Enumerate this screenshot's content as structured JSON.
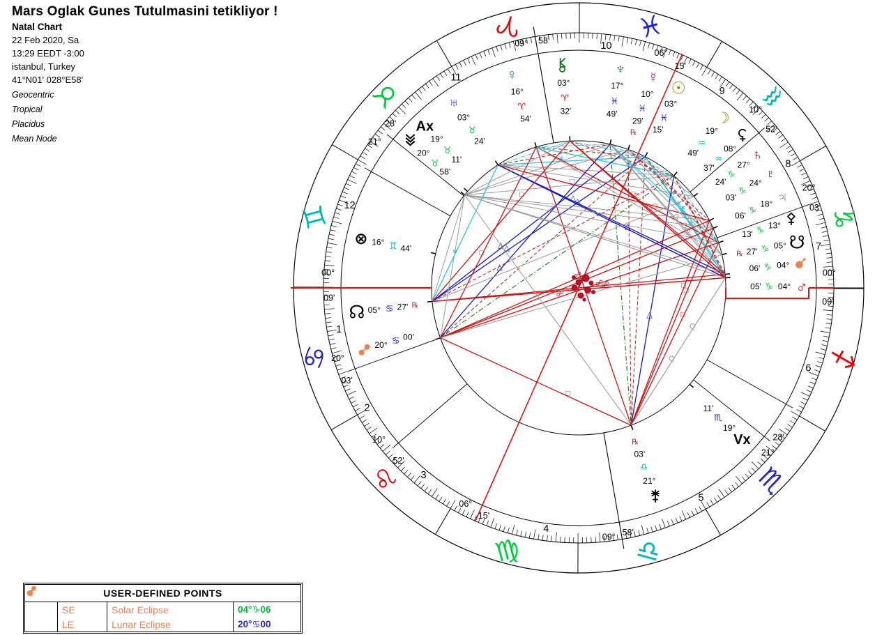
{
  "header": {
    "title": "Mars Oglak Gunes Tutulmasini tetikliyor !",
    "subtitle": "Natal Chart",
    "date": "22 Feb 2020, Sa",
    "time": "13:29 EEDT -3:00",
    "location": "istanbul, Turkey",
    "coordinates": "41°N01' 028°E58'",
    "settings": [
      "Geocentric",
      "Tropical",
      "Placidus",
      "Mean Node"
    ]
  },
  "chart_data": {
    "type": "natal_wheel",
    "ascendant": "00°Cancer09'",
    "midheaven": "09°Aries58'",
    "signs": [
      {
        "name": "aries",
        "glyph": "♈",
        "color": "#e60000",
        "start_phi": 269.85
      },
      {
        "name": "taurus",
        "glyph": "♉",
        "color": "#00cd3c",
        "start_phi": 299.85
      },
      {
        "name": "gemini",
        "glyph": "♊",
        "color": "#00b8b8",
        "start_phi": 329.85
      },
      {
        "name": "cancer",
        "glyph": "♋",
        "color": "#2323cc",
        "start_phi": 359.85
      },
      {
        "name": "leo",
        "glyph": "♌",
        "color": "#e60000",
        "start_phi": 29.85
      },
      {
        "name": "virgo",
        "glyph": "♍",
        "color": "#00cd3c",
        "start_phi": 59.85
      },
      {
        "name": "libra",
        "glyph": "♎",
        "color": "#00b8b8",
        "start_phi": 89.85
      },
      {
        "name": "scorpio",
        "glyph": "♏",
        "color": "#2323cc",
        "start_phi": 119.85
      },
      {
        "name": "sagittarius",
        "glyph": "♐",
        "color": "#e60000",
        "start_phi": 149.85
      },
      {
        "name": "capricorn",
        "glyph": "♑",
        "color": "#00cd3c",
        "start_phi": 179.85
      },
      {
        "name": "aquarius",
        "glyph": "♒",
        "color": "#00b8b8",
        "start_phi": 209.85
      },
      {
        "name": "pisces",
        "glyph": "♓",
        "color": "#2323cc",
        "start_phi": 239.85
      }
    ],
    "houses": [
      {
        "num": "1",
        "cusp_phi": 0.0,
        "deg": "00°",
        "min": "09'",
        "deg_phi": 356.6,
        "min_phi": 2.3,
        "num_phi": 9.9,
        "angular": true,
        "red": true
      },
      {
        "num": "2",
        "cusp_phi": 19.9,
        "deg": "20°",
        "min": "03'",
        "deg_phi": 16.3,
        "min_phi": 21.8,
        "num_phi": 29.6,
        "angular": false,
        "red": false
      },
      {
        "num": "3",
        "cusp_phi": 40.72,
        "deg": "10°",
        "min": "52'",
        "deg_phi": 37.3,
        "min_phi": 43.8,
        "num_phi": 50.4,
        "angular": false,
        "red": false
      },
      {
        "num": "4",
        "cusp_phi": 99.82,
        "deg": "09°",
        "min": "58'",
        "deg_phi": 96.9,
        "min_phi": 101.4,
        "num_phi": 82.3,
        "angular": true,
        "red": false
      },
      {
        "num": "5",
        "cusp_phi": 141.32,
        "deg": "21°",
        "min": "28'",
        "deg_phi": 138.9,
        "min_phi": 143.2,
        "num_phi": 120.2,
        "angular": false,
        "red": false
      },
      {
        "num": "6",
        "cusp_phi": 150.72,
        "deg": "",
        "min": "",
        "deg_phi": 0,
        "min_phi": 0,
        "num_phi": 160.7,
        "angular": false,
        "red": false
      },
      {
        "num": "7",
        "cusp_phi": 180.0,
        "deg": "00°",
        "min": "09'",
        "deg_phi": 183.4,
        "min_phi": 176.8,
        "num_phi": 189.7,
        "angular": true,
        "red": true
      },
      {
        "num": "8",
        "cusp_phi": 199.9,
        "deg": "20°",
        "min": "03'",
        "deg_phi": 203.5,
        "min_phi": 198.7,
        "num_phi": 210.6,
        "angular": false,
        "red": false
      },
      {
        "num": "9",
        "cusp_phi": 220.72,
        "deg": "10°",
        "min": "52'",
        "deg_phi": 225.2,
        "min_phi": 219.5,
        "num_phi": 233.9,
        "angular": false,
        "red": false
      },
      {
        "num": "10",
        "cusp_phi": 279.82,
        "deg": "09°",
        "min": "58'",
        "deg_phi": 283.2,
        "min_phi": 278.0,
        "num_phi": 263.5,
        "angular": true,
        "red": false
      },
      {
        "num": "11",
        "cusp_phi": 321.32,
        "deg": "21°",
        "min": "28'",
        "deg_phi": 324.4,
        "min_phi": 318.9,
        "num_phi": 300.3,
        "angular": false,
        "red": false
      },
      {
        "num": "12",
        "cusp_phi": 330.72,
        "deg": "",
        "min": "",
        "deg_phi": 0,
        "min_phi": 0,
        "num_phi": 340.2,
        "angular": false,
        "red": false
      }
    ],
    "bodies": [
      {
        "name": "sun",
        "char": "☉",
        "size": 24,
        "color": "#8f8f00",
        "deg": "03°",
        "sign": "♓",
        "sign_color": "#2323cc",
        "min": "15'",
        "retro": false,
        "lon": 333.25,
        "phi": 243.1,
        "dphi": 243.4,
        "aspect": "major"
      },
      {
        "name": "moon",
        "char": "☽",
        "size": 22,
        "color": "#8f8f00",
        "deg": "19°",
        "sign": "♒",
        "sign_color": "#00b8b8",
        "min": "49'",
        "retro": false,
        "lon": 319.82,
        "phi": 229.67,
        "dphi": 229.7,
        "aspect": "major"
      },
      {
        "name": "mercury",
        "char": "☿",
        "size": 21,
        "color": "#8b1b8b",
        "deg": "10°",
        "sign": "♓",
        "sign_color": "#2323cc",
        "min": "29'",
        "retro": true,
        "lon": 340.48,
        "phi": 250.33,
        "dphi": 250.5,
        "aspect": "major"
      },
      {
        "name": "venus",
        "char": "♀",
        "size": 21,
        "color": "#0e7474",
        "deg": "16°",
        "sign": "♈",
        "sign_color": "#e60000",
        "min": "54'",
        "retro": false,
        "lon": 16.9,
        "phi": 286.75,
        "dphi": 287.4,
        "aspect": "major"
      },
      {
        "name": "mars",
        "char": "♂",
        "size": 23,
        "color": "#e60000",
        "deg": "04°",
        "sign": "♑",
        "sign_color": "#00cd3c",
        "min": "05'",
        "retro": false,
        "lon": 274.083,
        "phi": 183.93,
        "dphi": 180.4,
        "aspect": "major"
      },
      {
        "name": "jupiter",
        "char": "♃",
        "size": 22,
        "color": "#858585",
        "deg": "18°",
        "sign": "♑",
        "sign_color": "#00cd3c",
        "min": "06'",
        "retro": false,
        "lon": 288.1,
        "phi": 197.95,
        "dphi": 204.1,
        "aspect": "major"
      },
      {
        "name": "saturn",
        "char": "♄",
        "size": 22,
        "color": "#7c1414",
        "deg": "27°",
        "sign": "♑",
        "sign_color": "#00cd3c",
        "min": "24'",
        "retro": false,
        "lon": 297.4,
        "phi": 207.25,
        "dphi": 216.7,
        "aspect": "major"
      },
      {
        "name": "uranus",
        "char": "♅",
        "size": 21,
        "color": "#2424e0",
        "deg": "03°",
        "sign": "♉",
        "sign_color": "#00cd3c",
        "min": "24'",
        "retro": false,
        "lon": 33.4,
        "phi": 303.25,
        "dphi": 304.0,
        "aspect": "major"
      },
      {
        "name": "neptune",
        "char": "♆",
        "size": 22,
        "color": "#0e7474",
        "deg": "17°",
        "sign": "♓",
        "sign_color": "#2323cc",
        "min": "49'",
        "retro": false,
        "lon": 347.817,
        "phi": 257.67,
        "dphi": 259.2,
        "aspect": "major"
      },
      {
        "name": "pluto",
        "char": "♇",
        "size": 21,
        "color": "#7c1414",
        "deg": "24°",
        "sign": "♑",
        "sign_color": "#00cd3c",
        "min": "03'",
        "retro": false,
        "lon": 294.05,
        "phi": 203.9,
        "dphi": 210.7,
        "aspect": "major"
      },
      {
        "name": "north-node",
        "char": "☊",
        "size": 26,
        "color": "#000000",
        "deg": "05°",
        "sign": "♋",
        "sign_color": "#2323cc",
        "min": "27'",
        "retro": true,
        "lon": 95.45,
        "phi": 5.3,
        "dphi": 6.2,
        "aspect": "major"
      },
      {
        "name": "south-node",
        "char": "☋",
        "size": 26,
        "color": "#000000",
        "deg": "05°",
        "sign": "♑",
        "sign_color": "#00cd3c",
        "min": "27'",
        "retro": true,
        "lon": 275.45,
        "phi": 185.3,
        "dphi": 191.8,
        "aspect": "major"
      },
      {
        "name": "chiron",
        "svg": "chiron",
        "size": 20,
        "color": "#0a7c0a",
        "deg": "03°",
        "sign": "♈",
        "sign_color": "#e60000",
        "min": "32'",
        "retro": false,
        "lon": 3.533,
        "phi": 273.38,
        "dphi": 274.2,
        "aspect": "major"
      },
      {
        "name": "ceres",
        "svg": "ceres",
        "size": 20,
        "color": "#000000",
        "deg": "08°",
        "sign": "♒",
        "sign_color": "#00b8b8",
        "min": "37'",
        "retro": false,
        "lon": 308.617,
        "phi": 218.47,
        "dphi": 222.6,
        "aspect": "gray"
      },
      {
        "name": "pallas",
        "svg": "pallas",
        "size": 20,
        "color": "#000000",
        "deg": "13°",
        "sign": "♑",
        "sign_color": "#00cd3c",
        "min": "13'",
        "retro": false,
        "lon": 283.217,
        "phi": 193.07,
        "dphi": 197.7,
        "aspect": "gray"
      },
      {
        "name": "juno",
        "svg": "juno",
        "size": 20,
        "color": "#000000",
        "deg": "21°",
        "sign": "♎",
        "sign_color": "#00b8b8",
        "min": "03'",
        "retro": true,
        "lon": 201.05,
        "phi": 110.9,
        "dphi": 110.1,
        "aspect": "major"
      },
      {
        "name": "vesta",
        "svg": "vesta",
        "size": 20,
        "color": "#000000",
        "deg": "20°",
        "sign": "♉",
        "sign_color": "#00cd3c",
        "min": "58'",
        "retro": false,
        "lon": 50.967,
        "phi": 320.82,
        "dphi": 319.0,
        "aspect": "gray"
      },
      {
        "name": "part-of-fortune",
        "char": "⊗",
        "size": 23,
        "color": "#000000",
        "deg": "16°",
        "sign": "♊",
        "sign_color": "#00b8b8",
        "min": "44'",
        "retro": false,
        "lon": 76.733,
        "phi": 346.58,
        "dphi": 347.2,
        "aspect": "none"
      },
      {
        "name": "solar-eclipse-point",
        "svg": "se",
        "size": 20,
        "color": "#ee8150",
        "deg": "04°",
        "sign": "♑",
        "sign_color": "#00cd3c",
        "min": "06'",
        "retro": false,
        "lon": 274.1,
        "phi": 183.95,
        "dphi": 186.3,
        "aspect": "major"
      },
      {
        "name": "lunar-eclipse-point",
        "svg": "le",
        "size": 20,
        "color": "#ee8150",
        "deg": "20°",
        "sign": "♋",
        "sign_color": "#2323cc",
        "min": "00'",
        "retro": false,
        "lon": 110.0,
        "phi": 19.85,
        "dphi": 16.1,
        "aspect": "major"
      },
      {
        "name": "anti-vertex",
        "text": "Ax",
        "size": 20,
        "color": "#000000",
        "deg": "19°",
        "sign": "♉",
        "sign_color": "#00cd3c",
        "min": "11'",
        "retro": false,
        "lon": 49.183,
        "phi": 319.03,
        "dphi": 313.6,
        "aspect": "none"
      },
      {
        "name": "vertex",
        "text": "Vx",
        "size": 20,
        "color": "#000000",
        "deg": "19°",
        "sign": "♏",
        "sign_color": "#2323cc",
        "min": "11'",
        "retro": false,
        "lon": 229.183,
        "phi": 139.03,
        "dphi": 137.1,
        "aspect": "none"
      }
    ],
    "axis_line": {
      "phi1": 246.1,
      "phi2": 66.1,
      "color": "#dd1111",
      "labels": [
        {
          "t": "06°",
          "phi": 250.7,
          "r": 357
        },
        {
          "t": "15'",
          "phi": 245.4,
          "r": 350
        },
        {
          "t": "06°",
          "phi": 62.4,
          "r": 350
        },
        {
          "t": "15'",
          "phi": 67.4,
          "r": 354
        }
      ]
    },
    "aspect_types": [
      {
        "id": "opp",
        "ang": 180,
        "orb": 7.5,
        "color": "#cc1111",
        "w": 1.3,
        "glyph": "☍"
      },
      {
        "id": "tri",
        "ang": 120,
        "orb": 6.5,
        "color": "#1515bb",
        "w": 1.3,
        "glyph": "△"
      },
      {
        "id": "sq",
        "ang": 90,
        "orb": 6.5,
        "color": "#cc1111",
        "w": 1.3,
        "glyph": "□"
      },
      {
        "id": "sex",
        "ang": 60,
        "orb": 5,
        "color": "#28c4e0",
        "w": 1.3,
        "glyph": "∗"
      },
      {
        "id": "qx",
        "ang": 150,
        "orb": 3.5,
        "color": "#107710",
        "w": 1.1,
        "dash": "7 3 1.5 3"
      },
      {
        "id": "ses",
        "ang": 135,
        "orb": 4.5,
        "color": "#aa3030",
        "w": 1.1,
        "dash": "5 3"
      },
      {
        "id": "ssq",
        "ang": 45,
        "orb": 2.5,
        "color": "#aa3030",
        "w": 1.1,
        "dash": "5 3"
      },
      {
        "id": "ssx",
        "ang": 30,
        "orb": 2.2,
        "color": "#28c4e0",
        "w": 1,
        "dash": "6 2 1.5 2"
      },
      {
        "id": "q",
        "ang": 72,
        "orb": 2,
        "color": "#999999",
        "w": 1,
        "glyph": "Q"
      },
      {
        "id": "bq",
        "ang": 144,
        "orb": 2,
        "color": "#999999",
        "w": 1,
        "glyph": "Q²"
      }
    ],
    "center_cluster": [
      [
        830,
        405,
        4
      ],
      [
        840,
        399,
        5
      ],
      [
        824,
        413,
        4
      ],
      [
        843,
        416,
        4.5
      ],
      [
        833,
        424,
        4
      ],
      [
        848,
        406,
        3
      ],
      [
        851,
        419,
        2.5
      ],
      [
        823,
        398,
        2.5
      ],
      [
        838,
        430,
        2.2
      ]
    ]
  },
  "table": {
    "title": "USER-DEFINED POINTS",
    "rows": [
      {
        "icon": "se-eclipse-icon",
        "abbr": "SE",
        "name": "Solar Eclipse",
        "deg": "04°",
        "sign": "♑",
        "min": "06",
        "color": "#00b83c"
      },
      {
        "icon": "le-eclipse-icon",
        "abbr": "LE",
        "name": "Lunar Eclipse",
        "deg": "20°",
        "sign": "♋",
        "min": "00",
        "color": "#2323cc"
      }
    ]
  }
}
